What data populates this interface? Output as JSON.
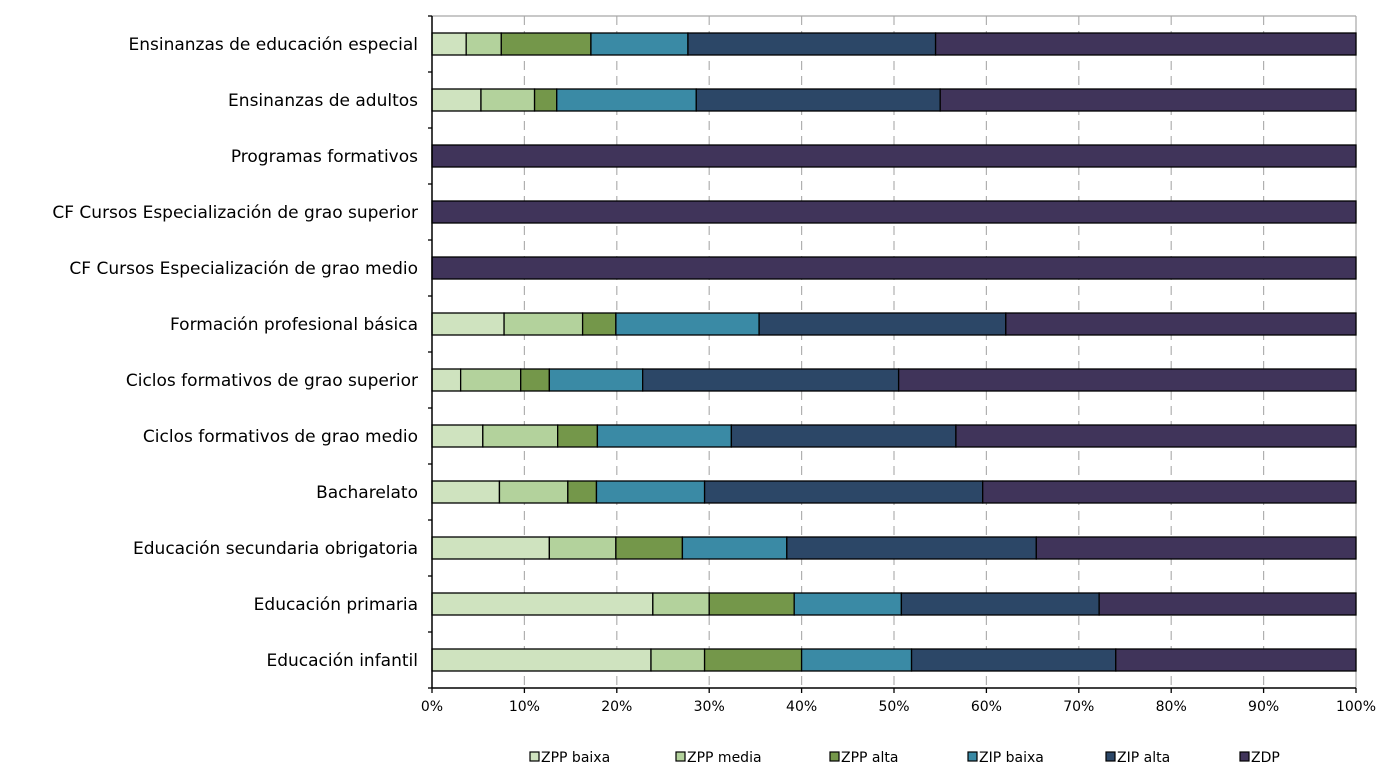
{
  "chart_data": {
    "type": "bar",
    "orientation": "horizontal",
    "stacked": "percent",
    "categories": [
      "Ensinanzas de educación especial",
      "Ensinanzas de adultos",
      "Programas formativos",
      "CF Cursos Especialización de grao superior",
      "CF Cursos Especialización de grao medio",
      "Formación profesional básica",
      "Ciclos formativos de grao superior",
      "Ciclos formativos de grao medio",
      "Bacharelato",
      "Educación secundaria obrigatoria",
      "Educación primaria",
      "Educación infantil"
    ],
    "series": [
      {
        "name": "ZPP baixa",
        "color": "#cfe3bf",
        "values": [
          3.7,
          5.3,
          0,
          0,
          0,
          7.8,
          3.1,
          5.5,
          7.3,
          12.7,
          23.9,
          23.7
        ]
      },
      {
        "name": "ZPP media",
        "color": "#b3d29c",
        "values": [
          3.8,
          5.8,
          0,
          0,
          0,
          8.5,
          6.5,
          8.1,
          7.4,
          7.2,
          6.1,
          5.8
        ]
      },
      {
        "name": "ZPP alta",
        "color": "#74974a",
        "values": [
          9.7,
          2.4,
          0,
          0,
          0,
          3.6,
          3.1,
          4.3,
          3.1,
          7.2,
          9.2,
          10.5
        ]
      },
      {
        "name": "ZIP baixa",
        "color": "#3a8aa5",
        "values": [
          10.5,
          15.1,
          0,
          0,
          0,
          15.5,
          10.1,
          14.5,
          11.7,
          11.3,
          11.6,
          11.9
        ]
      },
      {
        "name": "ZIP alta",
        "color": "#2c4767",
        "values": [
          26.8,
          26.4,
          0,
          0,
          0,
          26.7,
          27.7,
          24.3,
          30.1,
          27.0,
          21.4,
          22.1
        ]
      },
      {
        "name": "ZDP",
        "color": "#40345a",
        "values": [
          45.5,
          45.0,
          100,
          100,
          100,
          37.9,
          49.5,
          43.3,
          40.4,
          34.6,
          27.8,
          26.0
        ]
      }
    ],
    "x_ticks": [
      "0%",
      "10%",
      "20%",
      "30%",
      "40%",
      "50%",
      "60%",
      "70%",
      "80%",
      "90%",
      "100%"
    ],
    "xlim": [
      0,
      100
    ],
    "xlabel": "",
    "ylabel": "",
    "title": "",
    "grid": "vertical dashed",
    "legend_position": "bottom"
  }
}
